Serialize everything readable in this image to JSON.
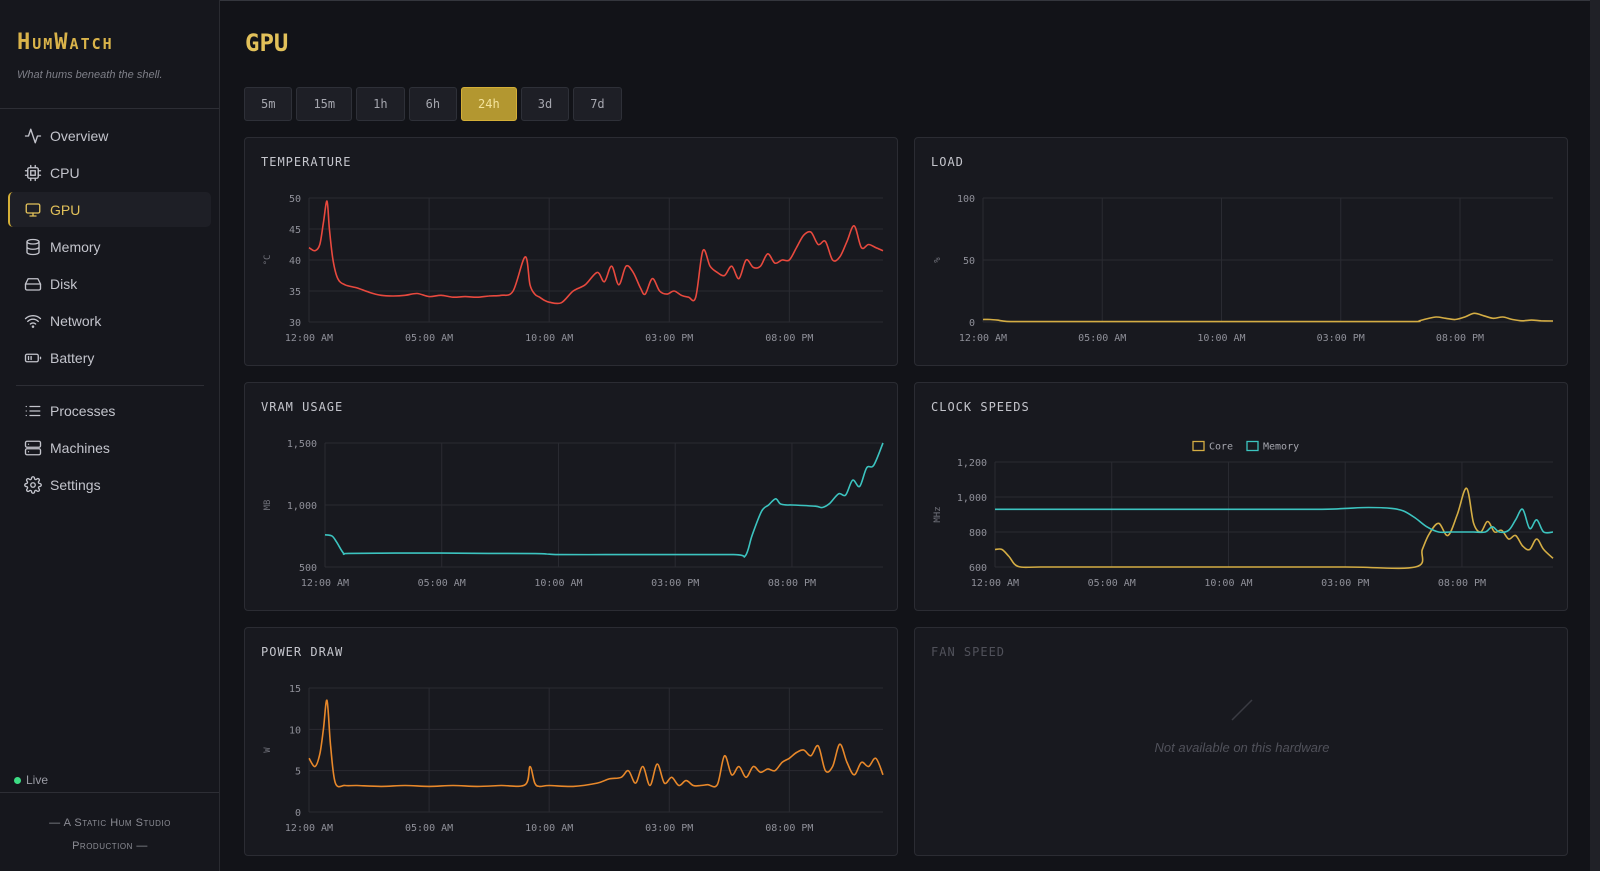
{
  "app": {
    "brand": "HumWatch",
    "tagline": "What hums beneath the shell."
  },
  "sidebar": {
    "items": [
      {
        "label": "Overview",
        "icon": "activity-icon"
      },
      {
        "label": "CPU",
        "icon": "cpu-icon"
      },
      {
        "label": "GPU",
        "icon": "monitor-icon",
        "active": true
      },
      {
        "label": "Memory",
        "icon": "database-icon"
      },
      {
        "label": "Disk",
        "icon": "hard-drive-icon"
      },
      {
        "label": "Network",
        "icon": "wifi-icon"
      },
      {
        "label": "Battery",
        "icon": "battery-icon"
      },
      {
        "label": "Processes",
        "icon": "list-icon"
      },
      {
        "label": "Machines",
        "icon": "server-icon"
      },
      {
        "label": "Settings",
        "icon": "gear-icon"
      }
    ],
    "live_label": "Live",
    "footer": {
      "line1": "— A Static Hum Studio",
      "line2": "Production —"
    }
  },
  "page": {
    "title": "GPU"
  },
  "ranges": {
    "items": [
      "5m",
      "15m",
      "1h",
      "6h",
      "24h",
      "3d",
      "7d"
    ],
    "active": "24h"
  },
  "colors": {
    "accent": "#d4af37",
    "temperature": "#e8493e",
    "load": "#d4ad44",
    "vram": "#3cc4c0",
    "core": "#d4ad44",
    "memory": "#3cc4c0",
    "power": "#e8882a",
    "live": "#3ddc84"
  },
  "cards": {
    "temperature": {
      "title": "TEMPERATURE"
    },
    "load": {
      "title": "LOAD"
    },
    "vram": {
      "title": "VRAM USAGE"
    },
    "clock": {
      "title": "CLOCK SPEEDS"
    },
    "power": {
      "title": "POWER DRAW"
    },
    "fan": {
      "title": "FAN SPEED",
      "message": "Not available on this hardware"
    }
  },
  "chart_data": [
    {
      "id": "temperature",
      "type": "line",
      "ylabel": "°C",
      "yticks": [
        30,
        35,
        40,
        45,
        50
      ],
      "ylim": [
        30,
        50
      ],
      "xticks": [
        "12:00 AM",
        "05:00 AM",
        "10:00 AM",
        "03:00 PM",
        "08:00 PM"
      ],
      "xlim": [
        0,
        23.9
      ],
      "series": [
        {
          "color": "#e8493e",
          "x": [
            0,
            0.25,
            0.45,
            0.6,
            0.75,
            0.85,
            1.0,
            1.2,
            1.5,
            2,
            2.5,
            3,
            3.5,
            4,
            4.5,
            5,
            5.5,
            6,
            6.5,
            7,
            7.5,
            8,
            8.5,
            9,
            9.2,
            9.4,
            9.6,
            9.8,
            10,
            10.5,
            11,
            11.5,
            12,
            12.3,
            12.6,
            12.9,
            13.2,
            13.5,
            13.8,
            14,
            14.3,
            14.6,
            14.9,
            15.2,
            15.5,
            15.8,
            16.1,
            16.4,
            16.7,
            17,
            17.3,
            17.6,
            17.9,
            18.2,
            18.5,
            18.8,
            19.1,
            19.4,
            19.7,
            20,
            20.3,
            20.6,
            20.9,
            21.2,
            21.5,
            21.8,
            22.1,
            22.4,
            22.7,
            23,
            23.3,
            23.6,
            23.9
          ],
          "y": [
            42,
            41.5,
            42.5,
            46,
            49.5,
            45,
            40,
            37,
            36,
            35.5,
            34.8,
            34.3,
            34.2,
            34.3,
            34.6,
            34.1,
            34.3,
            34,
            34.1,
            34,
            34.2,
            34.3,
            35,
            40.5,
            36,
            34.5,
            34,
            33.5,
            33.2,
            33.1,
            35,
            36,
            38,
            36.5,
            39,
            36,
            39,
            38,
            35.5,
            34.5,
            37,
            35,
            34.5,
            35,
            34.3,
            34,
            34,
            41.5,
            39,
            38,
            37.5,
            39,
            37,
            40,
            38.8,
            39,
            41,
            39.5,
            40,
            40,
            42,
            44,
            44.5,
            42.5,
            43,
            40,
            40.5,
            43,
            45.5,
            42,
            42.5,
            42,
            41.5
          ]
        }
      ]
    },
    {
      "id": "load",
      "type": "line",
      "ylabel": "%",
      "yticks": [
        0,
        50,
        100
      ],
      "ylim": [
        0,
        100
      ],
      "xticks": [
        "12:00 AM",
        "05:00 AM",
        "10:00 AM",
        "03:00 PM",
        "08:00 PM"
      ],
      "xlim": [
        0,
        23.9
      ],
      "series": [
        {
          "color": "#d4ad44",
          "x": [
            0,
            0.3,
            0.6,
            1,
            2,
            5,
            10,
            15,
            18,
            18.3,
            18.6,
            19,
            19.4,
            19.8,
            20.2,
            20.6,
            21,
            21.4,
            21.8,
            22.2,
            22.6,
            23,
            23.4,
            23.9
          ],
          "y": [
            2,
            2,
            1.5,
            0.5,
            0.3,
            0.3,
            0.3,
            0.3,
            0.3,
            1,
            2.5,
            4,
            3,
            2,
            4,
            7,
            5,
            3,
            4,
            2,
            1,
            1.5,
            1,
            0.8
          ]
        }
      ]
    },
    {
      "id": "vram",
      "type": "line",
      "ylabel": "MB",
      "yticks": [
        500,
        1000,
        1500
      ],
      "ylim": [
        500,
        1500
      ],
      "xticks": [
        "12:00 AM",
        "05:00 AM",
        "10:00 AM",
        "03:00 PM",
        "08:00 PM"
      ],
      "xlim": [
        0,
        23.9
      ],
      "series": [
        {
          "color": "#3cc4c0",
          "x": [
            0,
            0.3,
            0.5,
            0.8,
            1,
            3,
            5,
            7,
            9,
            9.5,
            10,
            12,
            14,
            17.5,
            18,
            18.3,
            18.7,
            19,
            19.3,
            19.5,
            19.8,
            20,
            21,
            21.3,
            21.6,
            22,
            22.3,
            22.6,
            22.9,
            23.2,
            23.5,
            23.9
          ],
          "y": [
            760,
            750,
            700,
            610,
            610,
            612,
            612,
            610,
            608,
            605,
            600,
            600,
            600,
            600,
            590,
            760,
            950,
            1000,
            1050,
            1010,
            1000,
            1000,
            990,
            980,
            1010,
            1090,
            1080,
            1200,
            1150,
            1300,
            1320,
            1500
          ]
        }
      ]
    },
    {
      "id": "clock",
      "type": "line",
      "ylabel": "MHz",
      "yticks": [
        600,
        800,
        1000,
        1200
      ],
      "ylim": [
        600,
        1200
      ],
      "xticks": [
        "12:00 AM",
        "05:00 AM",
        "10:00 AM",
        "03:00 PM",
        "08:00 PM"
      ],
      "xlim": [
        0,
        23.9
      ],
      "legend": [
        "Core",
        "Memory"
      ],
      "series": [
        {
          "name": "Core",
          "color": "#d4ad44",
          "x": [
            0,
            0.3,
            0.6,
            1,
            2,
            5,
            10,
            15,
            18,
            18.3,
            18.6,
            19,
            19.4,
            19.8,
            20.2,
            20.5,
            20.8,
            21.1,
            21.4,
            21.7,
            22,
            22.3,
            22.6,
            22.9,
            23.2,
            23.5,
            23.9
          ],
          "y": [
            700,
            700,
            660,
            603,
            600,
            600,
            600,
            600,
            600,
            700,
            790,
            850,
            780,
            900,
            1050,
            850,
            800,
            860,
            800,
            810,
            760,
            780,
            720,
            700,
            760,
            700,
            650
          ]
        },
        {
          "name": "Memory",
          "color": "#3cc4c0",
          "x": [
            0,
            2,
            5,
            10,
            14,
            15,
            16,
            17,
            17.5,
            18,
            18.5,
            19,
            19.5,
            20,
            20.5,
            21,
            21.3,
            21.6,
            22,
            22.3,
            22.6,
            22.9,
            23.2,
            23.5,
            23.9
          ],
          "y": [
            930,
            930,
            930,
            930,
            930,
            935,
            940,
            935,
            920,
            880,
            830,
            800,
            800,
            800,
            800,
            800,
            830,
            800,
            810,
            870,
            930,
            820,
            870,
            800,
            800
          ]
        }
      ]
    },
    {
      "id": "power",
      "type": "line",
      "ylabel": "W",
      "yticks": [
        0,
        5,
        10,
        15
      ],
      "ylim": [
        0,
        15
      ],
      "xticks": [
        "12:00 AM",
        "05:00 AM",
        "10:00 AM",
        "03:00 PM",
        "08:00 PM"
      ],
      "xlim": [
        0,
        23.9
      ],
      "series": [
        {
          "color": "#e8882a",
          "x": [
            0,
            0.25,
            0.45,
            0.6,
            0.75,
            0.9,
            1.1,
            1.5,
            2,
            3,
            4,
            5,
            6,
            7,
            8,
            9,
            9.2,
            9.4,
            9.6,
            10,
            11,
            12,
            12.5,
            13,
            13.3,
            13.6,
            13.9,
            14.2,
            14.5,
            14.8,
            15.1,
            15.4,
            15.7,
            16,
            16.3,
            16.6,
            17,
            17.3,
            17.6,
            17.9,
            18.2,
            18.5,
            18.8,
            19.1,
            19.4,
            19.7,
            20,
            20.3,
            20.6,
            20.9,
            21.2,
            21.5,
            21.8,
            22.1,
            22.4,
            22.7,
            23,
            23.3,
            23.6,
            23.9
          ],
          "y": [
            6.5,
            5.5,
            7,
            10,
            13.5,
            8,
            3.5,
            3.2,
            3.2,
            3.1,
            3.2,
            3.1,
            3.2,
            3.1,
            3.2,
            3.3,
            5.5,
            3.5,
            3.1,
            3.2,
            3.1,
            3.5,
            4,
            4.2,
            5,
            3.5,
            5.5,
            3.2,
            5.8,
            3.5,
            4.2,
            3.2,
            3.8,
            3.2,
            3.2,
            3.3,
            3.3,
            6.8,
            4.5,
            5.5,
            4.2,
            5.5,
            4.8,
            5.2,
            5,
            6,
            6.5,
            7.2,
            7.5,
            6.8,
            8,
            5,
            5.5,
            8.2,
            6,
            4.5,
            6,
            5.5,
            6.5,
            4.5
          ]
        }
      ]
    }
  ]
}
